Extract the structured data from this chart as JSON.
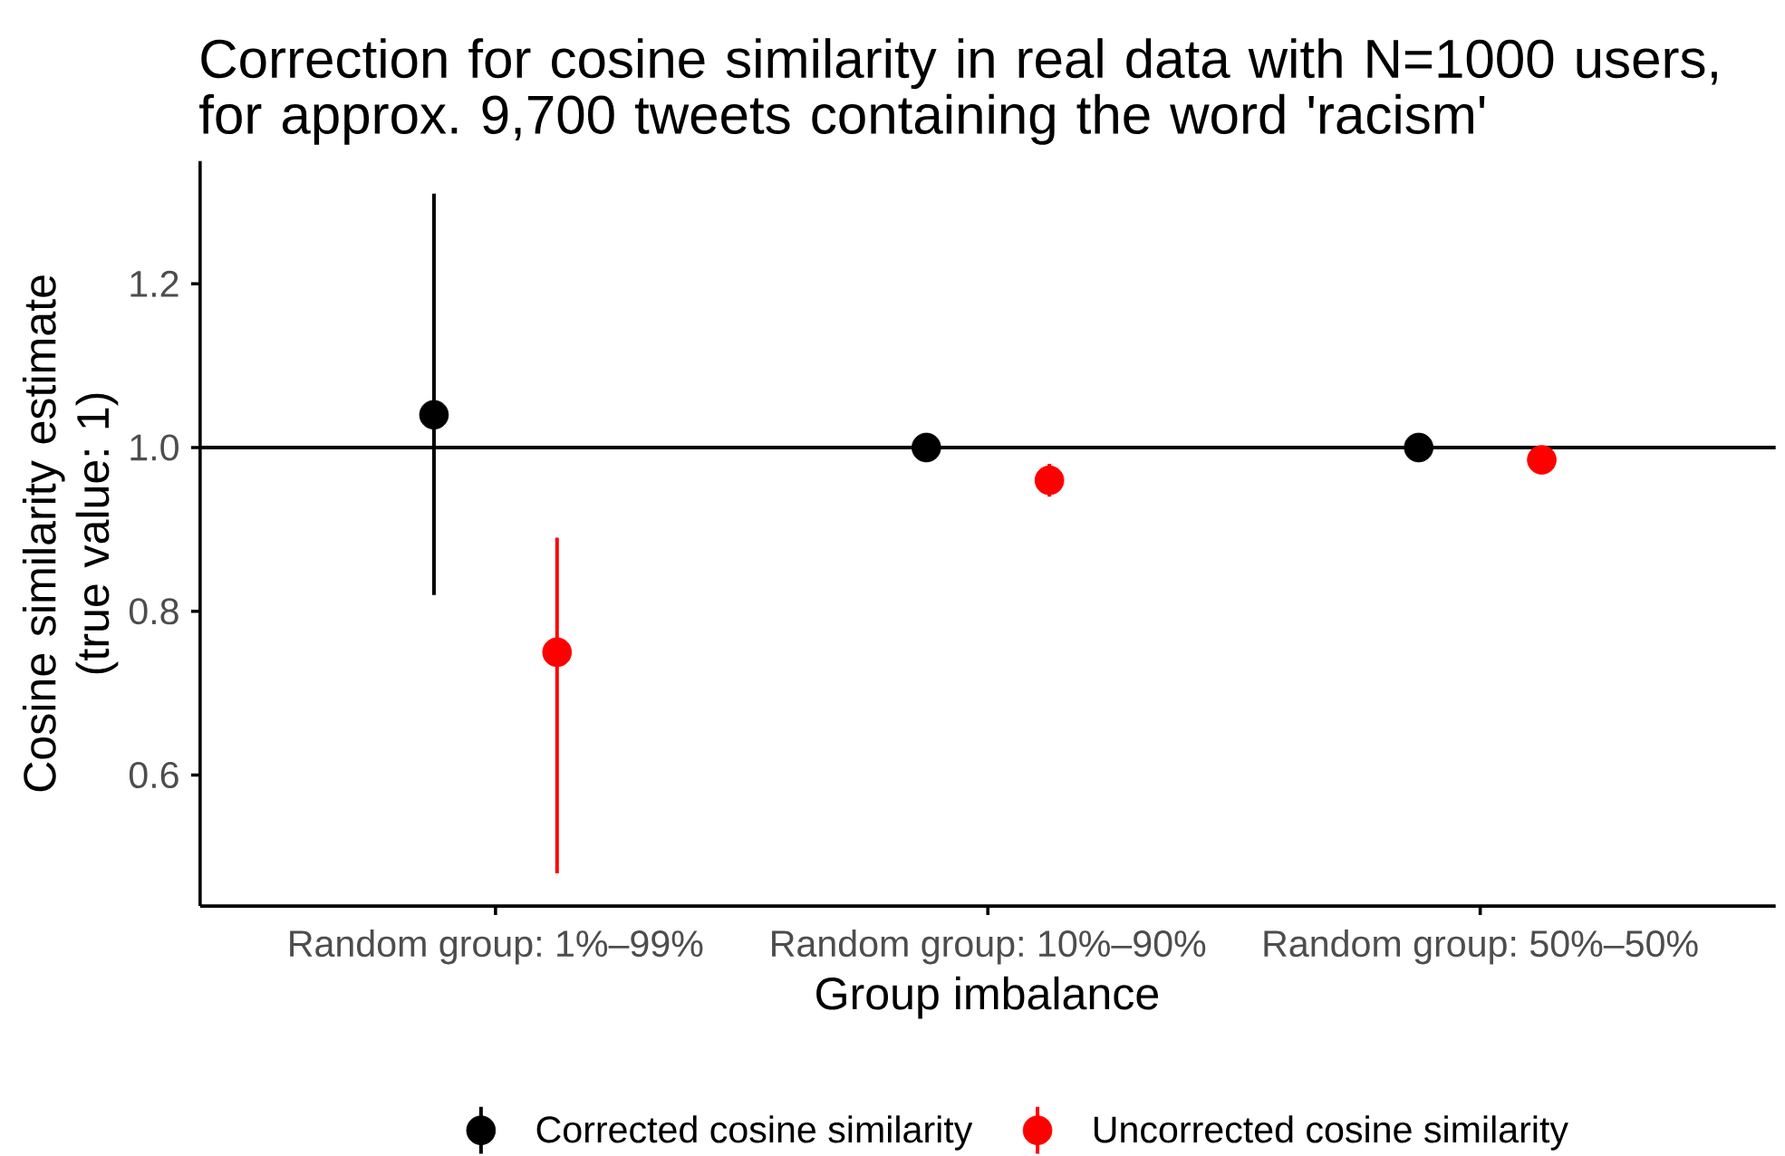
{
  "chart_data": {
    "type": "scatter",
    "title": "Correction for cosine similarity in real data with N=1000 users, for approx. 9,700 tweets containing the word 'racism'",
    "xlabel": "Group imbalance",
    "ylabel": "Cosine similarity estimate (true value: 1)",
    "categories": [
      "Random group: 1%–99%",
      "Random group: 10%–90%",
      "Random group: 50%–50%"
    ],
    "series": [
      {
        "name": "Corrected cosine similarity",
        "color": "#000000",
        "values": [
          1.04,
          1.0,
          1.0
        ],
        "errors": [
          [
            0.82,
            1.31
          ],
          null,
          null
        ]
      },
      {
        "name": "Uncorrected cosine similarity",
        "color": "#ff0000",
        "values": [
          0.75,
          0.96,
          0.985
        ],
        "errors": [
          [
            0.48,
            0.89
          ],
          [
            0.94,
            0.98
          ],
          null
        ]
      }
    ],
    "ylim": [
      0.44,
      1.35
    ],
    "yticks": [
      0.6,
      0.8,
      {
        "value": 1,
        "label": "1.0"
      },
      1.2
    ],
    "ref_lines": [
      {
        "axis": "y",
        "value": 1,
        "color": "#000000"
      }
    ],
    "marker": "circle",
    "legend": "bottom"
  }
}
